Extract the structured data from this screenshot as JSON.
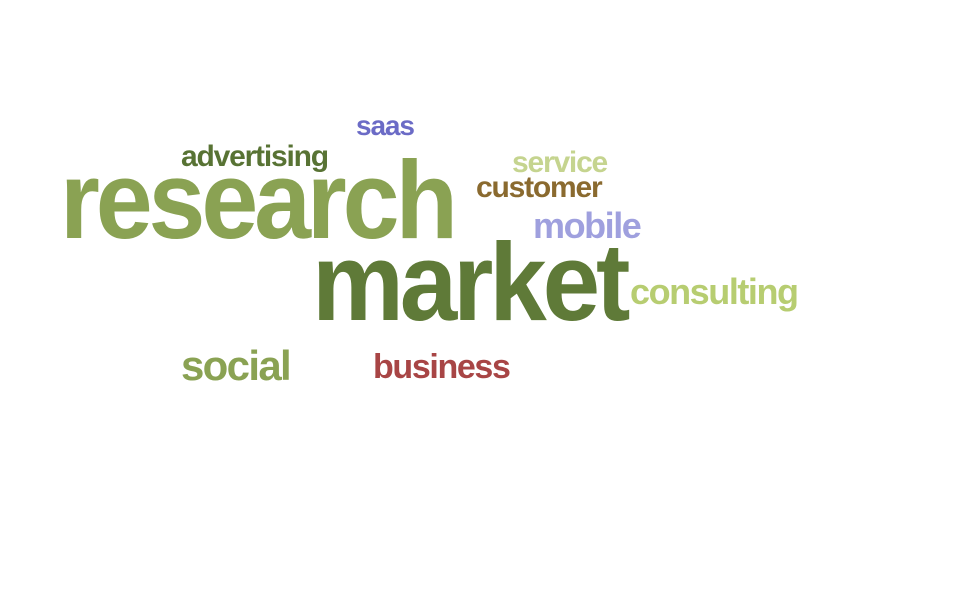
{
  "word_cloud": {
    "words": [
      {
        "text": "research",
        "color": "#8aa253"
      },
      {
        "text": "market",
        "color": "#5f7a38"
      },
      {
        "text": "saas",
        "color": "#6b6bc6"
      },
      {
        "text": "advertising",
        "color": "#587334"
      },
      {
        "text": "service",
        "color": "#c5d48f"
      },
      {
        "text": "customer",
        "color": "#8a6a2f"
      },
      {
        "text": "mobile",
        "color": "#9fa0de"
      },
      {
        "text": "consulting",
        "color": "#b7cd71"
      },
      {
        "text": "social",
        "color": "#8aa253"
      },
      {
        "text": "business",
        "color": "#a84545"
      }
    ]
  }
}
